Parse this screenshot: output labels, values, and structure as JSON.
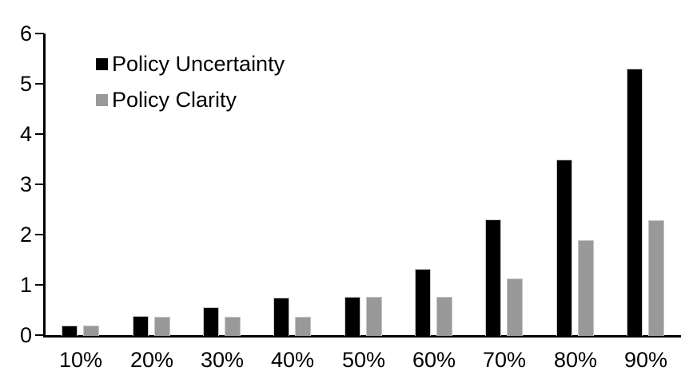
{
  "chart_data": {
    "type": "bar",
    "title": "",
    "xlabel": "",
    "ylabel": "",
    "categories": [
      "10%",
      "20%",
      "30%",
      "40%",
      "50%",
      "60%",
      "70%",
      "80%",
      "90%"
    ],
    "series": [
      {
        "name": "Policy Uncertainty",
        "color": "#000000",
        "values": [
          0.2,
          0.4,
          0.57,
          0.76,
          0.78,
          1.33,
          2.32,
          3.5,
          5.32
        ]
      },
      {
        "name": "Policy Clarity",
        "color": "#999999",
        "values": [
          0.2,
          0.38,
          0.38,
          0.38,
          0.77,
          0.77,
          1.15,
          1.9,
          2.3
        ]
      }
    ],
    "ylim": [
      0,
      6
    ],
    "yticks": [
      "0",
      "1",
      "2",
      "3",
      "4",
      "5",
      "6"
    ],
    "grid": false,
    "legend_position": "top-left-inside",
    "axis_color": "#000000",
    "background_color": "#ffffff"
  }
}
